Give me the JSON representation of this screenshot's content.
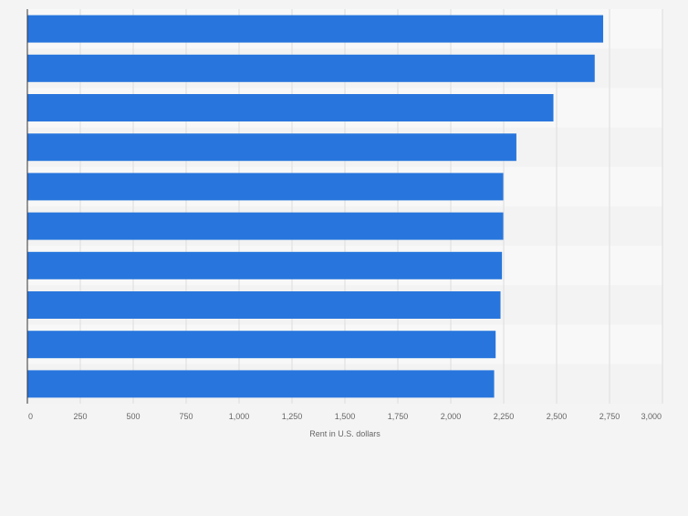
{
  "chart_data": {
    "type": "bar",
    "orientation": "horizontal",
    "title": "",
    "xlabel": "Rent in U.S. dollars",
    "ylabel": "",
    "xlim": [
      0,
      3000
    ],
    "ticks": [
      {
        "value": 0,
        "label": "0"
      },
      {
        "value": 250,
        "label": "250"
      },
      {
        "value": 500,
        "label": "500"
      },
      {
        "value": 750,
        "label": "750"
      },
      {
        "value": 1000,
        "label": "1,000"
      },
      {
        "value": 1250,
        "label": "1,250"
      },
      {
        "value": 1500,
        "label": "1,500"
      },
      {
        "value": 1750,
        "label": "1,750"
      },
      {
        "value": 2000,
        "label": "2,000"
      },
      {
        "value": 2250,
        "label": "2,250"
      },
      {
        "value": 2500,
        "label": "2,500"
      },
      {
        "value": 2750,
        "label": "2,750"
      },
      {
        "value": 3000,
        "label": "3,000"
      }
    ],
    "values": [
      2720,
      2680,
      2485,
      2310,
      2248,
      2248,
      2242,
      2235,
      2212,
      2205
    ],
    "grid": true,
    "colors": {
      "bar": "#2876dd",
      "band_light": "#f8f8f8",
      "band_dark": "#f3f3f3",
      "grid": "#dcdcdc",
      "axis": "#333333",
      "tick_text": "#666666"
    }
  }
}
